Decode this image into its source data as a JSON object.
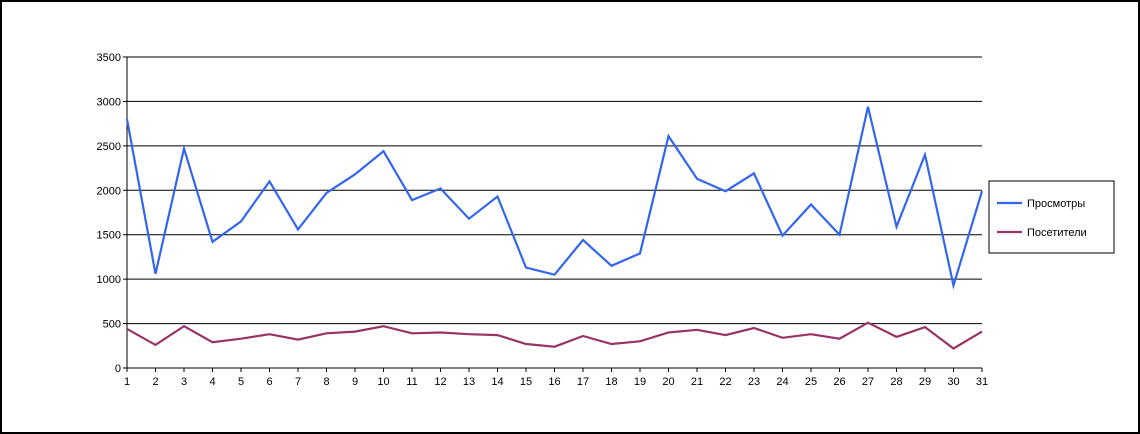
{
  "chart_data": {
    "type": "line",
    "title": "",
    "xlabel": "",
    "ylabel": "",
    "x": [
      1,
      2,
      3,
      4,
      5,
      6,
      7,
      8,
      9,
      10,
      11,
      12,
      13,
      14,
      15,
      16,
      17,
      18,
      19,
      20,
      21,
      22,
      23,
      24,
      25,
      26,
      27,
      28,
      29,
      30,
      31
    ],
    "y_ticks": [
      0,
      500,
      1000,
      1500,
      2000,
      2500,
      3000,
      3500
    ],
    "ylim": [
      0,
      3500
    ],
    "grid": true,
    "legend_position": "right",
    "series": [
      {
        "name": "Просмотры",
        "color": "#3366ee",
        "values": [
          2800,
          1060,
          2470,
          1420,
          1650,
          2100,
          1560,
          1970,
          2180,
          2440,
          1890,
          2020,
          1680,
          1930,
          1130,
          1050,
          1440,
          1150,
          1290,
          2610,
          2130,
          1990,
          2190,
          1490,
          1840,
          1500,
          2940,
          1590,
          2400,
          930,
          1990
        ]
      },
      {
        "name": "Посетители",
        "color": "#993366",
        "values": [
          440,
          260,
          470,
          290,
          330,
          380,
          320,
          390,
          410,
          470,
          390,
          400,
          380,
          370,
          270,
          240,
          360,
          270,
          300,
          400,
          430,
          370,
          450,
          340,
          380,
          330,
          510,
          350,
          460,
          220,
          410
        ]
      }
    ]
  }
}
